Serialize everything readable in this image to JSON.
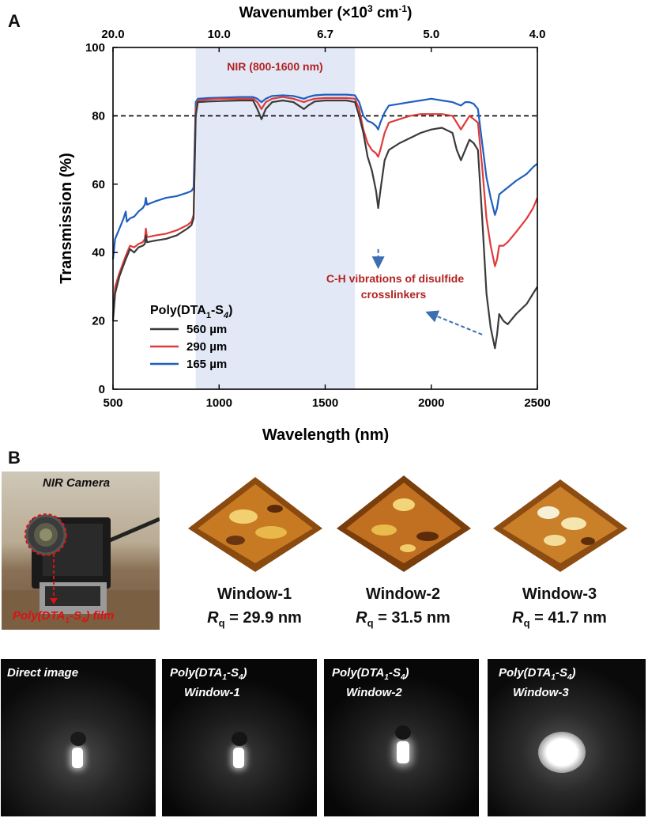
{
  "panel_a_label": "A",
  "panel_b_label": "B",
  "chart_data": {
    "type": "line",
    "title": "",
    "xlabel": "Wavelength (nm)",
    "ylabel": "Transmission (%)",
    "top_axis_label_prefix": "Wavenumber (×10",
    "top_axis_label_exp": "3",
    "top_axis_label_unit": " cm",
    "top_axis_label_exp2": "-1",
    "top_axis_label_suffix": ")",
    "top_ticks": [
      {
        "label": "20.0",
        "wavelength": 500
      },
      {
        "label": "10.0",
        "wavelength": 1000
      },
      {
        "label": "6.7",
        "wavelength": 1500
      },
      {
        "label": "5.0",
        "wavelength": 2000
      },
      {
        "label": "4.0",
        "wavelength": 2500
      }
    ],
    "xlim": [
      500,
      2500
    ],
    "ylim": [
      0,
      100
    ],
    "xticks": [
      500,
      1000,
      1500,
      2000,
      2500
    ],
    "yticks": [
      0,
      20,
      40,
      60,
      80,
      100
    ],
    "reference_line_y": 80,
    "nir_band": [
      890,
      1640
    ],
    "nir_label": "NIR (800-1600 nm)",
    "annotation": "C-H vibrations of disulfide crosslinkers",
    "annotation_line1": "C-H vibrations of disulfide",
    "annotation_line2": "crosslinkers",
    "legend_title_main": "Poly(DTA",
    "legend_title_sub1": "1",
    "legend_title_mid": "-S",
    "legend_title_sub2": "4",
    "legend_title_end": ")",
    "legend_placement": "bottom-left",
    "grid": false,
    "series": [
      {
        "name": "560 µm",
        "color": "#3a3a3a",
        "points": [
          [
            500,
            20
          ],
          [
            510,
            28
          ],
          [
            530,
            33
          ],
          [
            560,
            38
          ],
          [
            580,
            41
          ],
          [
            600,
            40
          ],
          [
            620,
            41.5
          ],
          [
            640,
            42
          ],
          [
            650,
            42.5
          ],
          [
            655,
            45
          ],
          [
            660,
            43
          ],
          [
            700,
            43.5
          ],
          [
            750,
            44
          ],
          [
            800,
            45
          ],
          [
            850,
            47
          ],
          [
            870,
            48
          ],
          [
            880,
            50
          ],
          [
            890,
            80
          ],
          [
            900,
            84
          ],
          [
            950,
            84.2
          ],
          [
            1000,
            84.3
          ],
          [
            1100,
            84.5
          ],
          [
            1160,
            84.5
          ],
          [
            1180,
            82
          ],
          [
            1200,
            79
          ],
          [
            1220,
            82
          ],
          [
            1250,
            84
          ],
          [
            1300,
            84.5
          ],
          [
            1350,
            84
          ],
          [
            1400,
            82
          ],
          [
            1420,
            83
          ],
          [
            1450,
            84.2
          ],
          [
            1500,
            84.5
          ],
          [
            1600,
            84.5
          ],
          [
            1640,
            84
          ],
          [
            1660,
            80
          ],
          [
            1680,
            75
          ],
          [
            1700,
            68
          ],
          [
            1720,
            64
          ],
          [
            1740,
            58
          ],
          [
            1750,
            53
          ],
          [
            1760,
            58
          ],
          [
            1780,
            67
          ],
          [
            1800,
            70
          ],
          [
            1850,
            72
          ],
          [
            1900,
            73.5
          ],
          [
            1950,
            75
          ],
          [
            2000,
            76
          ],
          [
            2050,
            76.5
          ],
          [
            2100,
            75
          ],
          [
            2120,
            70
          ],
          [
            2140,
            67
          ],
          [
            2160,
            70
          ],
          [
            2180,
            73
          ],
          [
            2200,
            72
          ],
          [
            2220,
            70
          ],
          [
            2240,
            50
          ],
          [
            2260,
            28
          ],
          [
            2280,
            18
          ],
          [
            2300,
            12
          ],
          [
            2310,
            16
          ],
          [
            2320,
            22
          ],
          [
            2340,
            20
          ],
          [
            2360,
            19
          ],
          [
            2400,
            22
          ],
          [
            2450,
            25
          ],
          [
            2480,
            28
          ],
          [
            2500,
            30
          ]
        ]
      },
      {
        "name": "290 µm",
        "color": "#e03a3a",
        "points": [
          [
            500,
            21
          ],
          [
            510,
            30
          ],
          [
            530,
            34
          ],
          [
            560,
            39
          ],
          [
            580,
            42
          ],
          [
            600,
            41.5
          ],
          [
            620,
            42.5
          ],
          [
            640,
            43
          ],
          [
            650,
            44
          ],
          [
            655,
            47
          ],
          [
            660,
            44.5
          ],
          [
            700,
            45
          ],
          [
            750,
            45.5
          ],
          [
            800,
            46.5
          ],
          [
            850,
            48
          ],
          [
            870,
            49
          ],
          [
            880,
            51
          ],
          [
            890,
            82
          ],
          [
            900,
            84.5
          ],
          [
            950,
            84.8
          ],
          [
            1000,
            85
          ],
          [
            1100,
            85
          ],
          [
            1160,
            85
          ],
          [
            1180,
            84
          ],
          [
            1200,
            82
          ],
          [
            1220,
            84
          ],
          [
            1250,
            85
          ],
          [
            1300,
            85.5
          ],
          [
            1350,
            85
          ],
          [
            1400,
            84
          ],
          [
            1420,
            84.5
          ],
          [
            1450,
            85
          ],
          [
            1500,
            85.2
          ],
          [
            1600,
            85.2
          ],
          [
            1640,
            85
          ],
          [
            1660,
            82
          ],
          [
            1680,
            76
          ],
          [
            1700,
            72
          ],
          [
            1720,
            70
          ],
          [
            1740,
            69
          ],
          [
            1750,
            68
          ],
          [
            1760,
            70
          ],
          [
            1780,
            75
          ],
          [
            1800,
            78
          ],
          [
            1850,
            79
          ],
          [
            1900,
            80
          ],
          [
            1950,
            80.5
          ],
          [
            2000,
            80.5
          ],
          [
            2050,
            80.5
          ],
          [
            2100,
            80
          ],
          [
            2120,
            78
          ],
          [
            2140,
            76
          ],
          [
            2160,
            78
          ],
          [
            2180,
            80
          ],
          [
            2200,
            79
          ],
          [
            2220,
            78
          ],
          [
            2240,
            65
          ],
          [
            2260,
            50
          ],
          [
            2280,
            42
          ],
          [
            2300,
            36
          ],
          [
            2310,
            38
          ],
          [
            2320,
            42
          ],
          [
            2340,
            42
          ],
          [
            2360,
            43
          ],
          [
            2400,
            46
          ],
          [
            2450,
            50
          ],
          [
            2480,
            53
          ],
          [
            2500,
            56
          ]
        ]
      },
      {
        "name": "165 µm",
        "color": "#1f5fbf",
        "points": [
          [
            500,
            38
          ],
          [
            510,
            44
          ],
          [
            530,
            47
          ],
          [
            550,
            50
          ],
          [
            560,
            52
          ],
          [
            565,
            49
          ],
          [
            580,
            50
          ],
          [
            600,
            50.5
          ],
          [
            620,
            52
          ],
          [
            640,
            53
          ],
          [
            650,
            54
          ],
          [
            655,
            56
          ],
          [
            660,
            54
          ],
          [
            700,
            55
          ],
          [
            750,
            56
          ],
          [
            800,
            56.5
          ],
          [
            850,
            57.5
          ],
          [
            870,
            58
          ],
          [
            880,
            59
          ],
          [
            890,
            84
          ],
          [
            900,
            85
          ],
          [
            950,
            85.2
          ],
          [
            1000,
            85.3
          ],
          [
            1100,
            85.5
          ],
          [
            1160,
            85.5
          ],
          [
            1180,
            85
          ],
          [
            1200,
            84
          ],
          [
            1220,
            85
          ],
          [
            1250,
            85.8
          ],
          [
            1300,
            86
          ],
          [
            1350,
            85.8
          ],
          [
            1400,
            85
          ],
          [
            1420,
            85.5
          ],
          [
            1450,
            86
          ],
          [
            1500,
            86.2
          ],
          [
            1600,
            86.2
          ],
          [
            1640,
            86
          ],
          [
            1660,
            84
          ],
          [
            1680,
            80
          ],
          [
            1700,
            78.5
          ],
          [
            1720,
            78
          ],
          [
            1740,
            77
          ],
          [
            1750,
            76
          ],
          [
            1760,
            78
          ],
          [
            1780,
            81
          ],
          [
            1800,
            83
          ],
          [
            1850,
            83.5
          ],
          [
            1900,
            84
          ],
          [
            1950,
            84.5
          ],
          [
            2000,
            85
          ],
          [
            2050,
            84.5
          ],
          [
            2100,
            84
          ],
          [
            2120,
            83.5
          ],
          [
            2140,
            83
          ],
          [
            2160,
            84
          ],
          [
            2180,
            84
          ],
          [
            2200,
            83.5
          ],
          [
            2220,
            82
          ],
          [
            2240,
            72
          ],
          [
            2260,
            62
          ],
          [
            2280,
            56
          ],
          [
            2300,
            51
          ],
          [
            2310,
            53
          ],
          [
            2320,
            57
          ],
          [
            2340,
            58
          ],
          [
            2360,
            59
          ],
          [
            2400,
            61
          ],
          [
            2450,
            63
          ],
          [
            2480,
            65
          ],
          [
            2500,
            66
          ]
        ]
      }
    ]
  },
  "camera_photo": {
    "label": "NIR Camera",
    "film_label_main": "Poly(DTA",
    "film_sub1": "1",
    "film_mid": "-S",
    "film_sub2": "4",
    "film_end": ") film"
  },
  "windows": [
    {
      "name": "Window-1",
      "rq_symbol": "R",
      "rq_sub": "q",
      "rq_value": " = 29.9 nm"
    },
    {
      "name": "Window-2",
      "rq_symbol": "R",
      "rq_sub": "q",
      "rq_value": " = 31.5 nm"
    },
    {
      "name": "Window-3",
      "rq_symbol": "R",
      "rq_sub": "q",
      "rq_value": " = 41.7 nm"
    }
  ],
  "ir_images": [
    {
      "line1": "Direct image",
      "line2": ""
    },
    {
      "line1": "Poly(DTA",
      "sub1": "1",
      "mid": "-S",
      "sub2": "4",
      "end": ")",
      "line2": "Window-1"
    },
    {
      "line1": "Poly(DTA",
      "sub1": "1",
      "mid": "-S",
      "sub2": "4",
      "end": ")",
      "line2": "Window-2"
    },
    {
      "line1": "Poly(DTA",
      "sub1": "1",
      "mid": "-S",
      "sub2": "4",
      "end": ")",
      "line2": "Window-3"
    }
  ]
}
